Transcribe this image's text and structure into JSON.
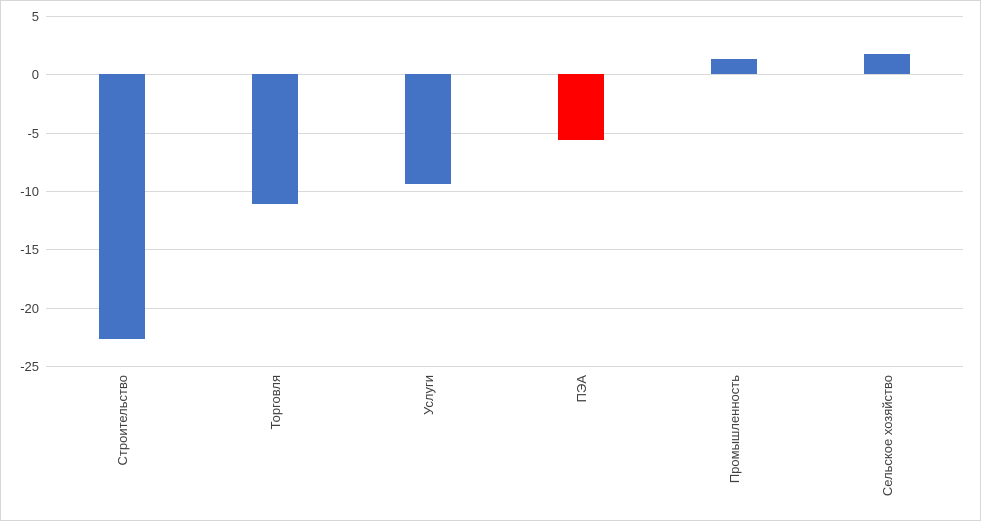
{
  "chart_data": {
    "type": "bar",
    "title": "",
    "xlabel": "",
    "ylabel": "",
    "categories": [
      "Строительство",
      "Торговля",
      "Услуги",
      "ПЭА",
      "Промышленность",
      "Сельское хозяйство"
    ],
    "values": [
      -22.7,
      -11.1,
      -9.4,
      -5.7,
      1.3,
      1.7
    ],
    "bar_colors": [
      "#4472C4",
      "#4472C4",
      "#4472C4",
      "#FF0000",
      "#4472C4",
      "#4472C4"
    ],
    "ylim": [
      -25,
      5
    ],
    "yticks": [
      5,
      0,
      -5,
      -10,
      -15,
      -20,
      -25
    ],
    "grid": true,
    "legend": "none",
    "colors": {
      "bar_blue": "#4472C4",
      "bar_red": "#FF0000",
      "gridline": "#d9d9d9",
      "tick_text": "#404040",
      "frame_border": "#d6d6d6"
    }
  }
}
